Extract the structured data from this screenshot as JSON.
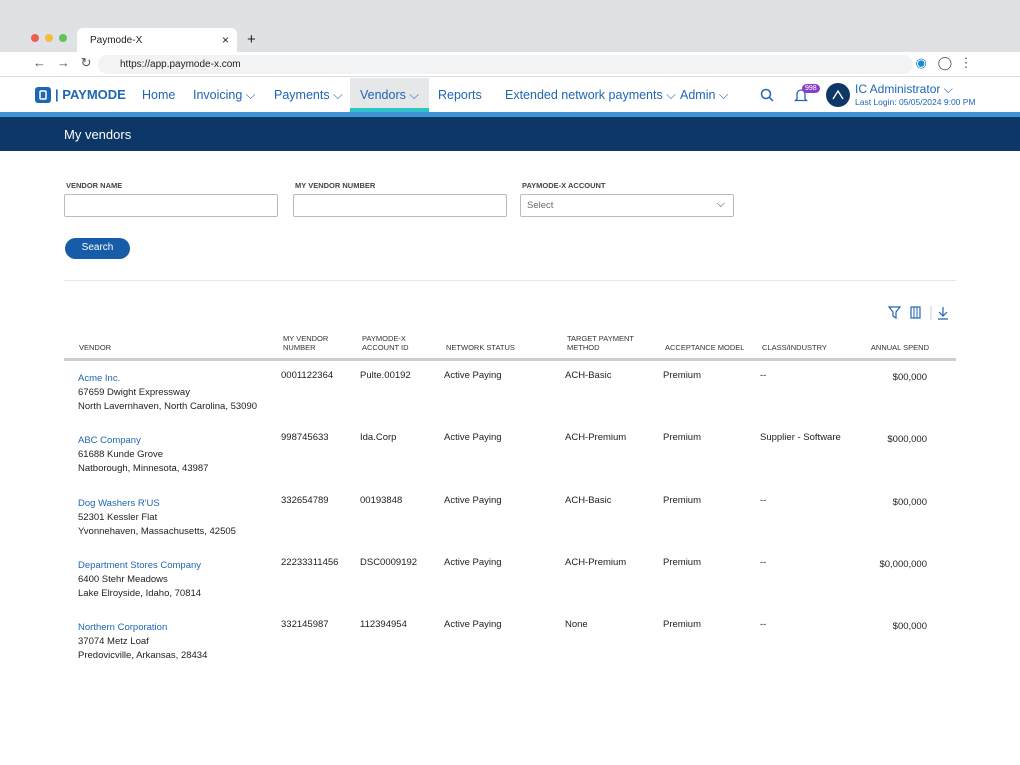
{
  "browser": {
    "tab_title": "Paymode-X",
    "url": "https://app.paymode-x.com"
  },
  "nav": {
    "logo": "PAYMODE",
    "items": [
      {
        "label": "Home",
        "menu": false
      },
      {
        "label": "Invoicing",
        "menu": true
      },
      {
        "label": "Payments",
        "menu": true
      },
      {
        "label": "Vendors",
        "menu": true,
        "active": true
      },
      {
        "label": "Reports",
        "menu": false
      },
      {
        "label": "Extended network payments",
        "menu": true
      },
      {
        "label": "Admin",
        "menu": true
      }
    ],
    "notification_count": "998",
    "user_name": "IC Administrator",
    "last_login": "Last Login: 05/05/2024 9:00 PM"
  },
  "page_title": "My vendors",
  "filters": [
    {
      "label": "VENDOR NAME"
    },
    {
      "label": "MY VENDOR NUMBER"
    },
    {
      "label": "PAYMODE-X ACCOUNT",
      "placeholder": "Select"
    }
  ],
  "search_button": "Search",
  "table": {
    "columns": [
      "VENDOR",
      "MY VENDOR NUMBER",
      "PAYMODE-X ACCOUNT ID",
      "NETWORK STATUS",
      "TARGET PAYMENT METHOD",
      "ACCEPTANCE MODEL",
      "CLASS/INDUSTRY",
      "ANNUAL SPEND"
    ],
    "rows": [
      {
        "vendor": "Acme Inc.",
        "address": [
          "67659 Dwight Expressway",
          "North Lavernhaven, North Carolina, 53090"
        ],
        "cells": [
          "0001122364",
          "Pulte.00192",
          "Active Paying",
          "ACH-Basic",
          "Premium",
          "--",
          "$00,000"
        ]
      },
      {
        "vendor": "ABC Company",
        "address": [
          "61688 Kunde Grove",
          "Natborough, Minnesota, 43987"
        ],
        "cells": [
          "998745633",
          "Ida.Corp",
          "Active Paying",
          "ACH-Premium",
          "Premium",
          "Supplier - Software",
          "$000,000"
        ]
      },
      {
        "vendor": "Dog Washers R'US",
        "address": [
          "52301 Kessler Flat",
          "Yvonnehaven, Massachusetts, 42505"
        ],
        "cells": [
          "332654789",
          "00193848",
          "Active Paying",
          "ACH-Basic",
          "Premium",
          "--",
          "$00,000"
        ]
      },
      {
        "vendor": "Department Stores Company",
        "address": [
          "6400 Stehr Meadows",
          "Lake Elroyside, Idaho, 70814"
        ],
        "cells": [
          "22233311456",
          "DSC0009192",
          "Active Paying",
          "ACH-Premium",
          "Premium",
          "--",
          "$0,000,000"
        ]
      },
      {
        "vendor": "Northern Corporation",
        "address": [
          "37074 Metz Loaf",
          "Predovicville, Arkansas, 28434"
        ],
        "cells": [
          "332145987",
          "112394954",
          "Active Paying",
          "None",
          "Premium",
          "--",
          "$00,000"
        ]
      }
    ]
  }
}
